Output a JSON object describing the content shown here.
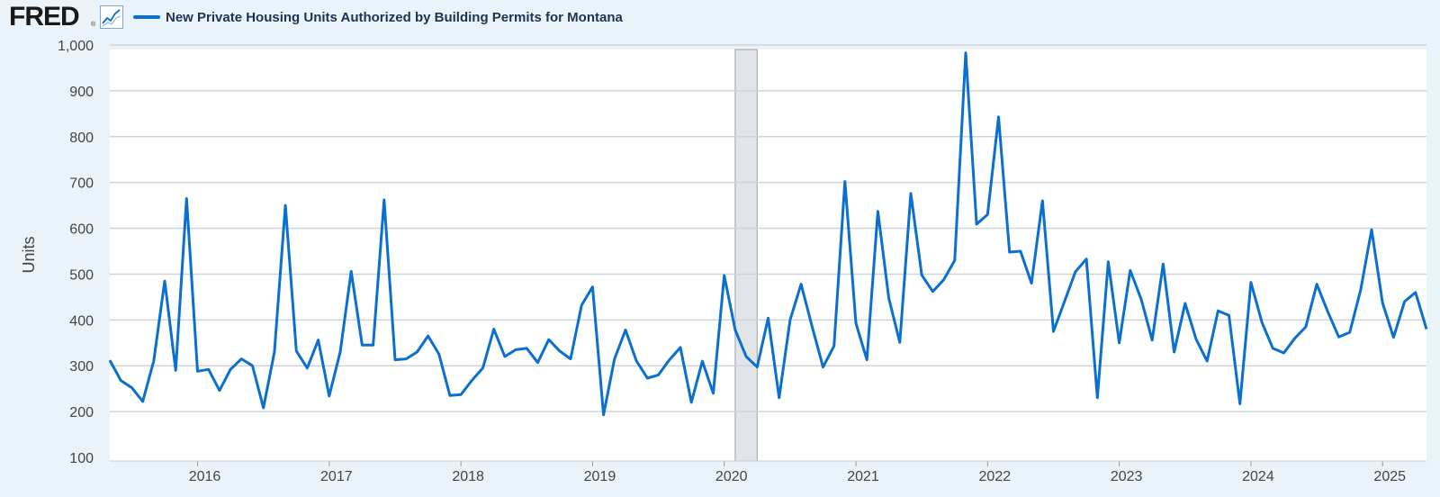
{
  "logo": {
    "text": "FRED",
    "registered": "®",
    "icon": "line-chart-icon"
  },
  "legend": {
    "series_name": "New Private Housing Units Authorized by Building Permits for Montana",
    "color": "#0b6fd0"
  },
  "chart_data": {
    "type": "line",
    "title": "",
    "xlabel": "",
    "ylabel": "Units",
    "ylim": [
      100,
      1000
    ],
    "y_ticks": [
      100,
      200,
      300,
      400,
      500,
      600,
      700,
      800,
      900,
      1000
    ],
    "y_tick_labels": [
      "100",
      "200",
      "300",
      "400",
      "500",
      "600",
      "700",
      "800",
      "900",
      "1,000"
    ],
    "x_ticks": [
      "2016",
      "2017",
      "2018",
      "2019",
      "2020",
      "2021",
      "2022",
      "2023",
      "2024",
      "2025"
    ],
    "xlim": [
      "2015-05",
      "2025-05"
    ],
    "grid": "horizontal",
    "line_color": "#0b6fd0",
    "recession": {
      "start": "2020-02",
      "end": "2020-04"
    },
    "series": [
      {
        "name": "New Private Housing Units Authorized by Building Permits for Montana",
        "x": [
          "2015-05",
          "2015-06",
          "2015-07",
          "2015-08",
          "2015-09",
          "2015-10",
          "2015-11",
          "2015-12",
          "2016-01",
          "2016-02",
          "2016-03",
          "2016-04",
          "2016-05",
          "2016-06",
          "2016-07",
          "2016-08",
          "2016-09",
          "2016-10",
          "2016-11",
          "2016-12",
          "2017-01",
          "2017-02",
          "2017-03",
          "2017-04",
          "2017-05",
          "2017-06",
          "2017-07",
          "2017-08",
          "2017-09",
          "2017-10",
          "2017-11",
          "2017-12",
          "2018-01",
          "2018-02",
          "2018-03",
          "2018-04",
          "2018-05",
          "2018-06",
          "2018-07",
          "2018-08",
          "2018-09",
          "2018-10",
          "2018-11",
          "2018-12",
          "2019-01",
          "2019-02",
          "2019-03",
          "2019-04",
          "2019-05",
          "2019-06",
          "2019-07",
          "2019-08",
          "2019-09",
          "2019-10",
          "2019-11",
          "2019-12",
          "2020-01",
          "2020-02",
          "2020-03",
          "2020-04",
          "2020-05",
          "2020-06",
          "2020-07",
          "2020-08",
          "2020-09",
          "2020-10",
          "2020-11",
          "2020-12",
          "2021-01",
          "2021-02",
          "2021-03",
          "2021-04",
          "2021-05",
          "2021-06",
          "2021-07",
          "2021-08",
          "2021-09",
          "2021-10",
          "2021-11",
          "2021-12",
          "2022-01",
          "2022-02",
          "2022-03",
          "2022-04",
          "2022-05",
          "2022-06",
          "2022-07",
          "2022-08",
          "2022-09",
          "2022-10",
          "2022-11",
          "2022-12",
          "2023-01",
          "2023-02",
          "2023-03",
          "2023-04",
          "2023-05",
          "2023-06",
          "2023-07",
          "2023-08",
          "2023-09",
          "2023-10",
          "2023-11",
          "2023-12",
          "2024-01",
          "2024-02",
          "2024-03",
          "2024-04",
          "2024-05",
          "2024-06",
          "2024-07",
          "2024-08",
          "2024-09",
          "2024-10",
          "2024-11",
          "2024-12",
          "2025-01",
          "2025-02",
          "2025-03",
          "2025-04",
          "2025-05"
        ],
        "values": [
          312,
          268,
          252,
          222,
          310,
          485,
          290,
          665,
          288,
          292,
          246,
          292,
          315,
          300,
          208,
          330,
          650,
          332,
          295,
          356,
          234,
          330,
          506,
          345,
          345,
          662,
          313,
          315,
          330,
          365,
          325,
          235,
          237,
          268,
          295,
          380,
          320,
          335,
          338,
          307,
          357,
          332,
          315,
          432,
          472,
          193,
          315,
          378,
          310,
          273,
          280,
          313,
          340,
          220,
          310,
          240,
          497,
          378,
          320,
          297,
          404,
          230,
          400,
          478,
          386,
          297,
          343,
          702,
          393,
          313,
          637,
          447,
          351,
          676,
          498,
          462,
          488,
          530,
          983,
          609,
          630,
          843,
          548,
          550,
          480,
          660,
          375,
          440,
          505,
          533,
          230,
          527,
          350,
          508,
          445,
          356,
          522,
          330,
          436,
          358,
          310,
          420,
          410,
          217,
          482,
          395,
          338,
          328,
          360,
          385,
          478,
          418,
          363,
          373,
          465,
          597,
          437,
          362,
          440,
          460,
          380
        ]
      }
    ]
  }
}
